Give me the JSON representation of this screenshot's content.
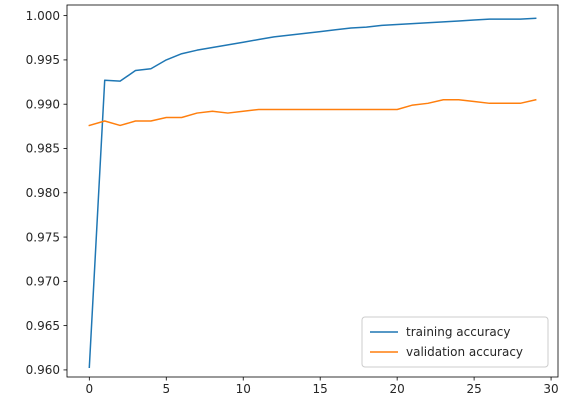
{
  "chart_data": {
    "type": "line",
    "title": "",
    "xlabel": "",
    "ylabel": "",
    "xlim": [
      -1.45,
      30.45
    ],
    "ylim": [
      0.9592,
      1.0012
    ],
    "xticks": [
      0,
      5,
      10,
      15,
      20,
      25,
      30
    ],
    "xtick_labels": [
      "0",
      "5",
      "10",
      "15",
      "20",
      "25",
      "30"
    ],
    "yticks": [
      0.96,
      0.965,
      0.97,
      0.975,
      0.98,
      0.985,
      0.99,
      0.995,
      1.0
    ],
    "ytick_labels": [
      "0.960",
      "0.965",
      "0.970",
      "0.975",
      "0.980",
      "0.985",
      "0.990",
      "0.995",
      "1.000"
    ],
    "grid": false,
    "legend_position": "lower-right",
    "x": [
      0,
      1,
      2,
      3,
      4,
      5,
      6,
      7,
      8,
      9,
      10,
      11,
      12,
      13,
      14,
      15,
      16,
      17,
      18,
      19,
      20,
      21,
      22,
      23,
      24,
      25,
      26,
      27,
      28,
      29
    ],
    "series": [
      {
        "name": "training accuracy",
        "color": "#1f77b4",
        "values": [
          0.9603,
          0.9927,
          0.9926,
          0.9938,
          0.994,
          0.995,
          0.9957,
          0.9961,
          0.9964,
          0.9967,
          0.997,
          0.9973,
          0.9976,
          0.9978,
          0.998,
          0.9982,
          0.9984,
          0.9986,
          0.9987,
          0.9989,
          0.999,
          0.9991,
          0.9992,
          0.9993,
          0.9994,
          0.9995,
          0.9996,
          0.9996,
          0.9996,
          0.9997
        ]
      },
      {
        "name": "validation accuracy",
        "color": "#ff7f0e",
        "values": [
          0.9876,
          0.9881,
          0.9876,
          0.9881,
          0.9881,
          0.9885,
          0.9885,
          0.989,
          0.9892,
          0.989,
          0.9892,
          0.9894,
          0.9894,
          0.9894,
          0.9894,
          0.9894,
          0.9894,
          0.9894,
          0.9894,
          0.9894,
          0.9894,
          0.9899,
          0.9901,
          0.9905,
          0.9905,
          0.9903,
          0.9901,
          0.9901,
          0.9901,
          0.9905
        ]
      }
    ]
  }
}
